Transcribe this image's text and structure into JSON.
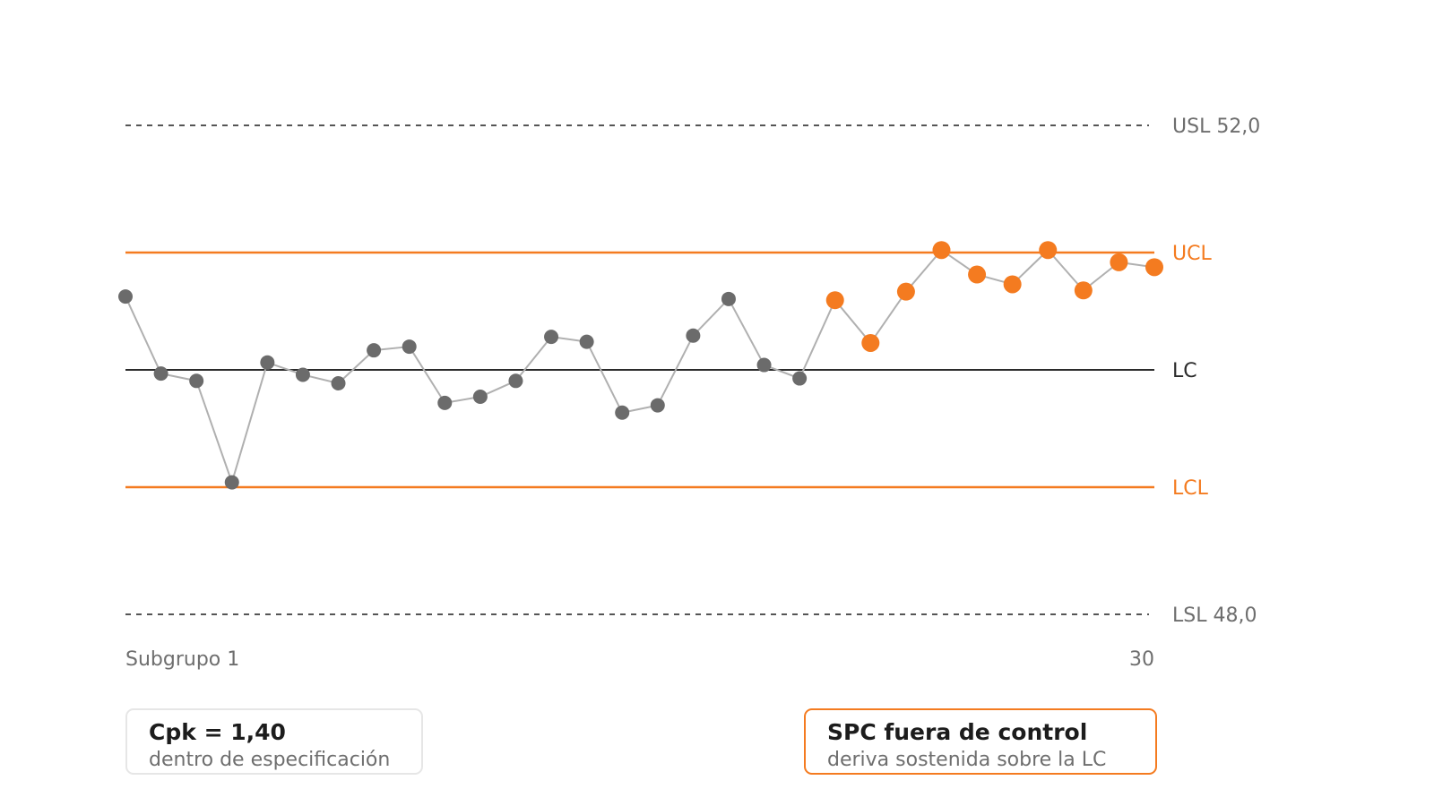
{
  "chart_data": {
    "type": "line",
    "title": "",
    "xlabel": "",
    "ylabel": "",
    "x_first_label": "Subgrupo 1",
    "x_last_label": "30",
    "x": [
      1,
      2,
      3,
      4,
      5,
      6,
      7,
      8,
      9,
      10,
      11,
      12,
      13,
      14,
      15,
      16,
      17,
      18,
      19,
      20,
      21,
      22,
      23,
      24,
      25,
      26,
      27,
      28,
      29,
      30
    ],
    "values": [
      50.6,
      49.97,
      49.91,
      49.08,
      50.06,
      49.96,
      49.89,
      50.16,
      50.19,
      49.73,
      49.78,
      49.91,
      50.27,
      50.23,
      49.65,
      49.71,
      50.28,
      50.58,
      50.04,
      49.93,
      50.57,
      50.22,
      50.64,
      50.98,
      50.78,
      50.7,
      50.98,
      50.65,
      50.88,
      50.84
    ],
    "highlight_from_index": 20,
    "limits": [
      {
        "key": "usl",
        "label": "USL 52,0",
        "value": 52.0,
        "style": "dashed"
      },
      {
        "key": "ucl",
        "label": "UCL",
        "value": 50.96,
        "style": "solid"
      },
      {
        "key": "lc",
        "label": "LC",
        "value": 50.0,
        "style": "solid"
      },
      {
        "key": "lcl",
        "label": "LCL",
        "value": 49.04,
        "style": "solid"
      },
      {
        "key": "lsl",
        "label": "LSL 48,0",
        "value": 48.0,
        "style": "dashed"
      }
    ],
    "ylim": [
      48.0,
      52.0
    ],
    "grid": false,
    "legend": "none"
  },
  "colors": {
    "normal_point": "#6b6b6b",
    "alert": "#f47b20",
    "connector": "#b0b0b0",
    "center_line": "#2b2b2b",
    "spec_line": "#555555",
    "muted_text": "#6e6e6e"
  },
  "cards": {
    "cpk": {
      "title": "Cpk = 1,40",
      "subtitle": "dentro de especificación"
    },
    "spc": {
      "title": "SPC fuera de control",
      "subtitle": "deriva sostenida sobre la LC"
    }
  }
}
